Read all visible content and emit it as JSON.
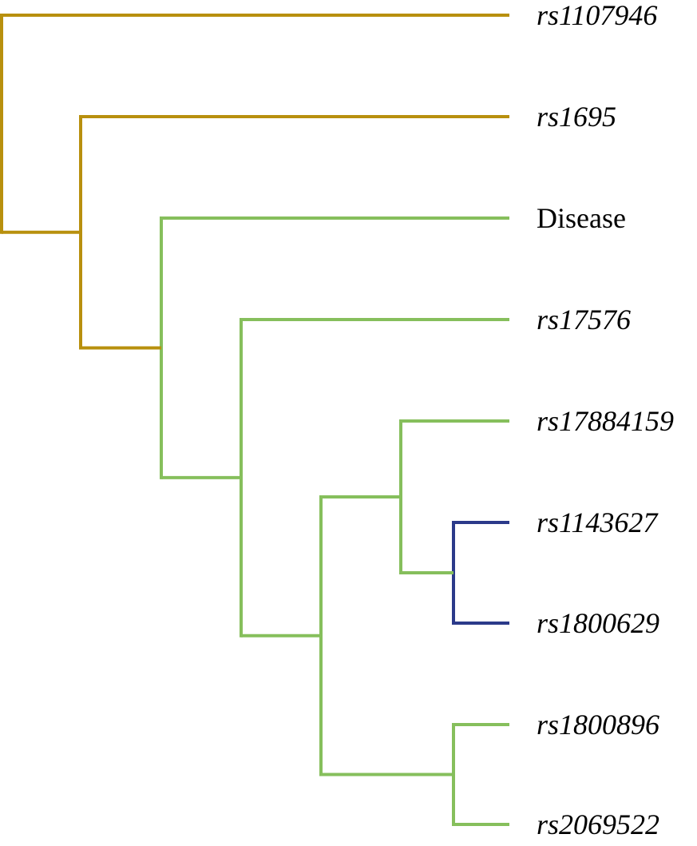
{
  "colors": {
    "gold": "#B8900E",
    "green": "#86BF5C",
    "navy": "#2B3A8A",
    "label": "#000000"
  },
  "leaves": [
    {
      "id": "rs1107946",
      "label": "rs1107946",
      "italic": true
    },
    {
      "id": "rs1695",
      "label": "rs1695",
      "italic": true
    },
    {
      "id": "disease",
      "label": "Disease",
      "italic": false
    },
    {
      "id": "rs17576",
      "label": "rs17576",
      "italic": true
    },
    {
      "id": "rs17884159",
      "label": "rs17884159",
      "italic": true
    },
    {
      "id": "rs1143627",
      "label": "rs1143627",
      "italic": true
    },
    {
      "id": "rs1800629",
      "label": "rs1800629",
      "italic": true
    },
    {
      "id": "rs1800896",
      "label": "rs1800896",
      "italic": true
    },
    {
      "id": "rs2069522",
      "label": "rs2069522",
      "italic": true
    }
  ],
  "clusters": [
    {
      "id": "c1",
      "children": [
        "rs1143627",
        "rs1800629"
      ],
      "color": "navy"
    },
    {
      "id": "c2",
      "children": [
        "rs17884159",
        "c1"
      ],
      "color": "green"
    },
    {
      "id": "c3",
      "children": [
        "rs1800896",
        "rs2069522"
      ],
      "color": "green"
    },
    {
      "id": "c4",
      "children": [
        "c2",
        "c3"
      ],
      "color": "green"
    },
    {
      "id": "c5",
      "children": [
        "rs17576",
        "c4"
      ],
      "color": "green"
    },
    {
      "id": "c6",
      "children": [
        "disease",
        "c5"
      ],
      "color": "green"
    },
    {
      "id": "c7",
      "children": [
        "rs1695",
        "c6"
      ],
      "color": "gold"
    },
    {
      "id": "c8",
      "children": [
        "rs1107946",
        "c7"
      ],
      "color": "gold"
    }
  ]
}
